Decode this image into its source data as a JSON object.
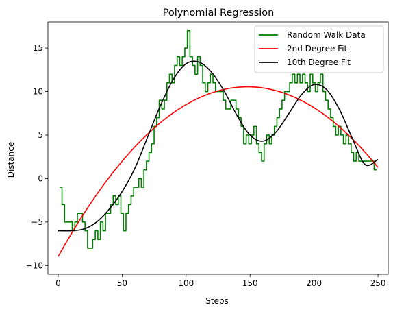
{
  "chart_data": {
    "type": "line",
    "title": "Polynomial Regression",
    "xlabel": "Steps",
    "ylabel": "Distance",
    "xlim": [
      -8,
      258
    ],
    "ylim": [
      -11,
      18
    ],
    "xticks": [
      0,
      50,
      100,
      150,
      200,
      250
    ],
    "yticks": [
      -10,
      -5,
      0,
      5,
      10,
      15
    ],
    "grid": false,
    "legend_position": "top-right",
    "series": [
      {
        "name": "Random Walk Data",
        "color": "#008000",
        "x": [
          1,
          3,
          5,
          7,
          9,
          11,
          13,
          15,
          17,
          19,
          21,
          23,
          25,
          27,
          29,
          31,
          33,
          35,
          37,
          39,
          41,
          43,
          45,
          47,
          49,
          51,
          53,
          55,
          57,
          59,
          61,
          63,
          65,
          67,
          69,
          71,
          73,
          75,
          77,
          79,
          81,
          83,
          85,
          87,
          89,
          91,
          93,
          95,
          97,
          99,
          101,
          103,
          105,
          107,
          109,
          111,
          113,
          115,
          117,
          119,
          121,
          123,
          125,
          127,
          129,
          131,
          133,
          135,
          137,
          139,
          141,
          143,
          145,
          147,
          149,
          151,
          153,
          155,
          157,
          159,
          161,
          163,
          165,
          167,
          169,
          171,
          173,
          175,
          177,
          179,
          181,
          183,
          185,
          187,
          189,
          191,
          193,
          195,
          197,
          199,
          201,
          203,
          205,
          207,
          209,
          211,
          213,
          215,
          217,
          219,
          221,
          223,
          225,
          227,
          229,
          231,
          233,
          235,
          237,
          239,
          241,
          243,
          245,
          247,
          249
        ],
        "y": [
          -1,
          -3,
          -5,
          -5,
          -5,
          -6,
          -5,
          -4,
          -4,
          -5,
          -6,
          -8,
          -8,
          -7,
          -6,
          -7,
          -5,
          -6,
          -4,
          -4,
          -3,
          -2,
          -3,
          -2,
          -4,
          -6,
          -4,
          -3,
          -2,
          -1,
          -1,
          0,
          -1,
          1,
          2,
          3,
          4,
          6,
          7,
          9,
          8,
          9,
          11,
          12,
          11,
          13,
          14,
          13,
          14,
          15,
          17,
          14,
          13,
          12,
          14,
          13,
          11,
          10,
          11,
          12,
          11,
          10,
          10,
          10,
          9,
          8,
          8,
          9,
          9,
          8,
          7,
          6,
          4,
          5,
          4,
          5,
          6,
          4,
          3,
          2,
          4,
          5,
          4,
          5,
          6,
          7,
          8,
          9,
          10,
          10,
          11,
          12,
          11,
          12,
          11,
          12,
          11,
          10,
          12,
          11,
          10,
          11,
          12,
          10,
          9,
          8,
          7,
          6,
          5,
          6,
          5,
          4,
          5,
          4,
          3,
          2,
          3,
          2,
          2,
          2,
          2,
          2,
          2,
          1,
          1
        ]
      },
      {
        "name": "2nd Degree Fit",
        "color": "#ff0000",
        "fit": "quadratic",
        "x": [
          0,
          50,
          100,
          150,
          200,
          250
        ],
        "y": [
          -9.7,
          3.2,
          8.8,
          9.8,
          7.6,
          1.8
        ]
      },
      {
        "name": "10th Degree Fit",
        "color": "#000000",
        "fit": "polynomial-10",
        "x": [
          0,
          10,
          20,
          30,
          40,
          50,
          60,
          70,
          80,
          90,
          100,
          110,
          120,
          130,
          140,
          150,
          160,
          170,
          180,
          190,
          200,
          210,
          220,
          230,
          240,
          250
        ],
        "y": [
          -6,
          -6,
          -5.8,
          -5,
          -3.5,
          -1.5,
          1.2,
          4.8,
          8.4,
          11.4,
          13.2,
          13.4,
          12.2,
          10,
          7.2,
          5,
          4.3,
          5.3,
          7.4,
          9.6,
          10.8,
          10.2,
          7.9,
          4.6,
          1.6,
          2.2
        ]
      }
    ]
  }
}
